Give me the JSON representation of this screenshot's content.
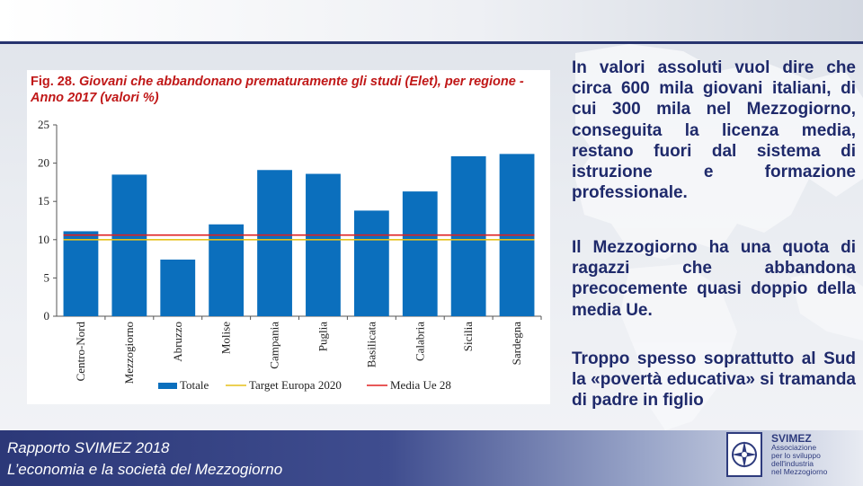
{
  "figure": {
    "number": "Fig. 28.",
    "title": "Giovani che abbandonano prematuramente gli studi (Elet), per regione - Anno 2017 (valori %)"
  },
  "paragraphs": [
    "In valori assoluti vuol dire che circa 600 mila giovani italiani, di cui 300 mila nel Mezzogiorno, conseguita la licenza media, restano fuori dal sistema di istruzione e formazione professionale.",
    "Il Mezzogiorno ha una quota di ragazzi che abbandona precocemente quasi doppio della media Ue.",
    "Troppo spesso soprattutto al Sud la «povertà educativa» si tramanda di padre in figlio"
  ],
  "footer": {
    "line1": "Rapporto SVIMEZ 2018",
    "line2": "L’economia e la società del Mezzogiorno"
  },
  "logo": {
    "name": "SVIMEZ",
    "subtitle": "Associazione\nper lo sviluppo\ndell'industria\nnel Mezzogiorno",
    "mark_icon": "compass-icon"
  },
  "colors": {
    "bar": "#0b6fbd",
    "target_line": "#e6c11a",
    "media_line": "#e02020",
    "title_red": "#c01818",
    "body_navy": "#1f2a6b"
  },
  "chart_data": {
    "type": "bar",
    "categories": [
      "Centro-Nord",
      "Mezzogiorno",
      "Abruzzo",
      "Molise",
      "Campania",
      "Puglia",
      "Basilicata",
      "Calabria",
      "Sicilia",
      "Sardegna"
    ],
    "series": [
      {
        "name": "Totale",
        "type": "bar",
        "values": [
          11.1,
          18.5,
          7.4,
          12.0,
          19.1,
          18.6,
          13.8,
          16.3,
          20.9,
          21.2
        ]
      },
      {
        "name": "Target Europa 2020",
        "type": "line",
        "value": 10.0
      },
      {
        "name": "Media Ue 28",
        "type": "line",
        "value": 10.6
      }
    ],
    "ylim": [
      0,
      25
    ],
    "yticks": [
      "0",
      "5",
      "10",
      "15",
      "20",
      "25"
    ],
    "legend_position": "bottom",
    "grid": false
  }
}
